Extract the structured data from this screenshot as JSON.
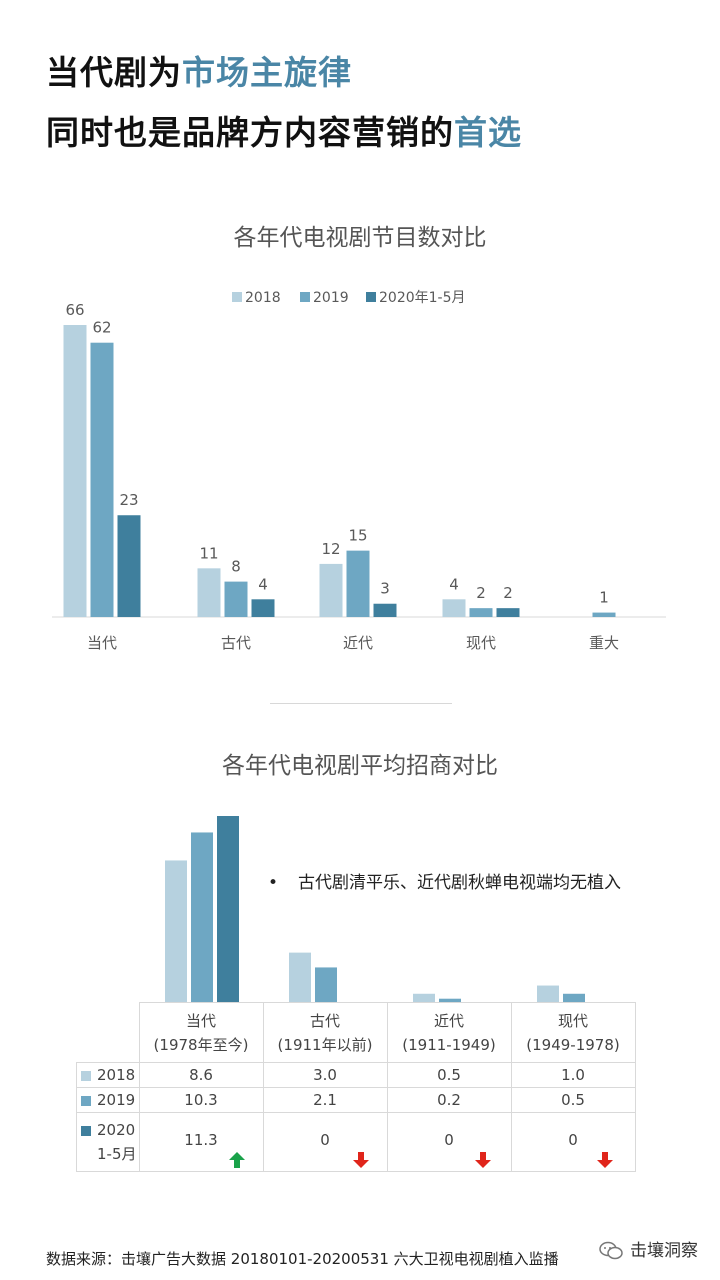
{
  "headline": {
    "line1_prefix": "当代剧为",
    "line1_highlight": "市场主旋律",
    "line2_prefix": "同时也是品牌方内容营销的",
    "line2_highlight": "首选"
  },
  "colors": {
    "s2018": "#b6d1df",
    "s2019": "#6ea7c3",
    "s2020": "#3f7f9d",
    "axis": "#d9d9d9",
    "label": "#595959",
    "up": "#1aa24a",
    "down": "#e0251b",
    "highlight": "#4a86a6"
  },
  "chart_data": [
    {
      "type": "bar",
      "title": "各年代电视剧节目数对比",
      "categories": [
        "当代",
        "古代",
        "近代",
        "现代",
        "重大"
      ],
      "series": [
        {
          "name": "2018",
          "values": [
            66,
            11,
            12,
            4,
            null
          ]
        },
        {
          "name": "2019",
          "values": [
            62,
            8,
            15,
            2,
            1
          ]
        },
        {
          "name": "2020年1-5月",
          "values": [
            23,
            4,
            3,
            2,
            null
          ]
        }
      ],
      "legend": "top",
      "ylim": [
        0,
        70
      ]
    },
    {
      "type": "bar",
      "title": "各年代电视剧平均招商对比",
      "categories": [
        "当代",
        "古代",
        "近代",
        "现代"
      ],
      "category_sublabels": [
        "(1978年至今)",
        "(1911年以前)",
        "(1911-1949)",
        "(1949-1978)"
      ],
      "series": [
        {
          "name": "2018",
          "values": [
            8.6,
            3.0,
            0.5,
            1.0
          ]
        },
        {
          "name": "2019",
          "values": [
            10.3,
            2.1,
            0.2,
            0.5
          ]
        },
        {
          "name": "2020 1-5月",
          "values": [
            11.3,
            0,
            0,
            0
          ]
        }
      ],
      "value_labels": [
        [
          "8.6",
          "3.0",
          "0.5",
          "1.0"
        ],
        [
          "10.3",
          "2.1",
          "0.2",
          "0.5"
        ],
        [
          "11.3",
          "0",
          "0",
          "0"
        ]
      ],
      "trend_2020": [
        "up",
        "down",
        "down",
        "down"
      ],
      "ylim": [
        0,
        12
      ]
    }
  ],
  "note": {
    "bullet": "•",
    "text": "古代剧清平乐、近代剧秋蝉电视端均无植入"
  },
  "table": {
    "row_labels": [
      "2018",
      "2019",
      "2020",
      "1-5月"
    ]
  },
  "footer": {
    "source": "数据来源：击壤广告大数据 20180101-20200531 六大卫视电视剧植入监播",
    "brand": "击壤洞察"
  }
}
